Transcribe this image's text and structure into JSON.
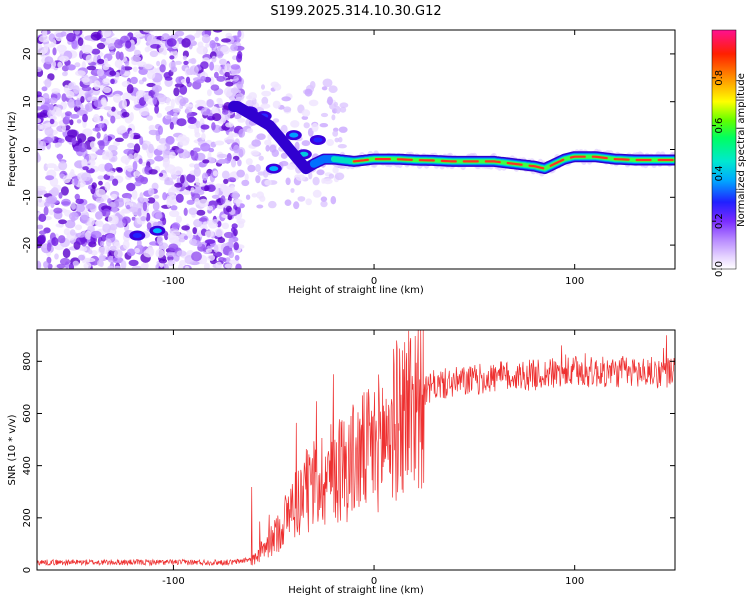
{
  "title": "S199.2025.314.10.30.G12",
  "chart_data": [
    {
      "type": "heatmap",
      "xlabel": "Height of straight line (km)",
      "ylabel": "Frequency (Hz)",
      "xlim": [
        -168,
        150
      ],
      "ylim": [
        -25,
        25
      ],
      "xticks": [
        -100,
        0,
        100
      ],
      "yticks": [
        -20,
        -10,
        0,
        10,
        20
      ],
      "ridge": {
        "x": [
          -68,
          -60,
          -52,
          -46,
          -40,
          -34,
          -30,
          -25,
          -20,
          -10,
          0,
          10,
          20,
          30,
          40,
          50,
          60,
          70,
          80,
          85,
          90,
          95,
          100,
          110,
          120,
          130,
          140,
          150
        ],
        "y": [
          9,
          7,
          5,
          2,
          -1,
          -4,
          -3,
          -2,
          -2,
          -2.5,
          -2,
          -2,
          -2.2,
          -2.3,
          -2.5,
          -2.5,
          -2.5,
          -3,
          -3.5,
          -4,
          -3,
          -2,
          -1.5,
          -1.5,
          -2,
          -2.2,
          -2.2,
          -2.2
        ]
      },
      "colorbar": {
        "label": "Normalized spectral amplitude",
        "range": [
          0,
          1
        ],
        "ticks": [
          0.0,
          0.2,
          0.4,
          0.6,
          0.8
        ],
        "tick_labels": [
          "0.0",
          "0.2",
          "0.4",
          "0.6",
          "0.8"
        ]
      }
    },
    {
      "type": "line",
      "xlabel": "Height of straight line (km)",
      "ylabel": "SNR (10 * v/v)",
      "xlim": [
        -168,
        150
      ],
      "ylim": [
        0,
        920
      ],
      "xticks": [
        -100,
        0,
        100
      ],
      "yticks": [
        0,
        200,
        400,
        600,
        800
      ],
      "color": "#ee3030",
      "envelope": {
        "x": [
          -168,
          -70,
          -60,
          -50,
          -40,
          -30,
          -20,
          -10,
          0,
          10,
          20,
          30,
          40,
          60,
          80,
          100,
          120,
          150
        ],
        "y": [
          25,
          25,
          40,
          120,
          250,
          330,
          380,
          420,
          470,
          560,
          660,
          720,
          730,
          750,
          760,
          770,
          770,
          770
        ]
      }
    }
  ]
}
